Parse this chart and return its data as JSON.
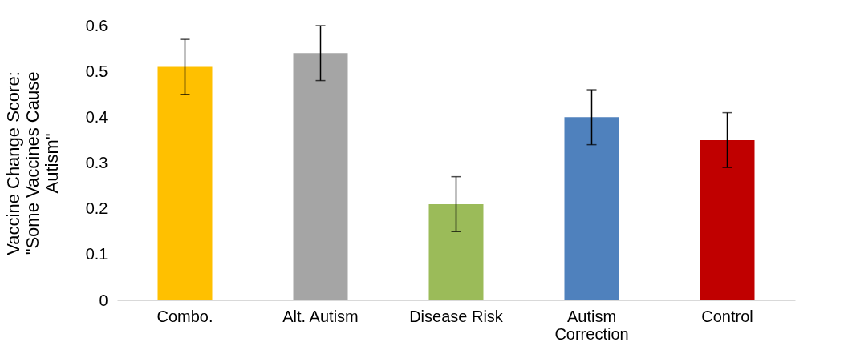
{
  "chart_data": {
    "type": "bar",
    "ylabel": "Vaccine Change Score: \"Some Vaccines Cause Autism\"",
    "categories": [
      "Combo.",
      "Alt. Autism",
      "Disease Risk",
      "Autism Correction",
      "Control"
    ],
    "values": [
      0.51,
      0.54,
      0.21,
      0.4,
      0.35
    ],
    "colors": [
      "#ffc000",
      "#a5a5a5",
      "#9bbb59",
      "#4f81bd",
      "#c00000"
    ],
    "errors": [
      0.06,
      0.06,
      0.06,
      0.06,
      0.06
    ],
    "ylim": [
      0,
      0.6
    ],
    "yticks": [
      0,
      0.1,
      0.2,
      0.3,
      0.4,
      0.5,
      0.6
    ],
    "grid": false,
    "legend": false
  }
}
